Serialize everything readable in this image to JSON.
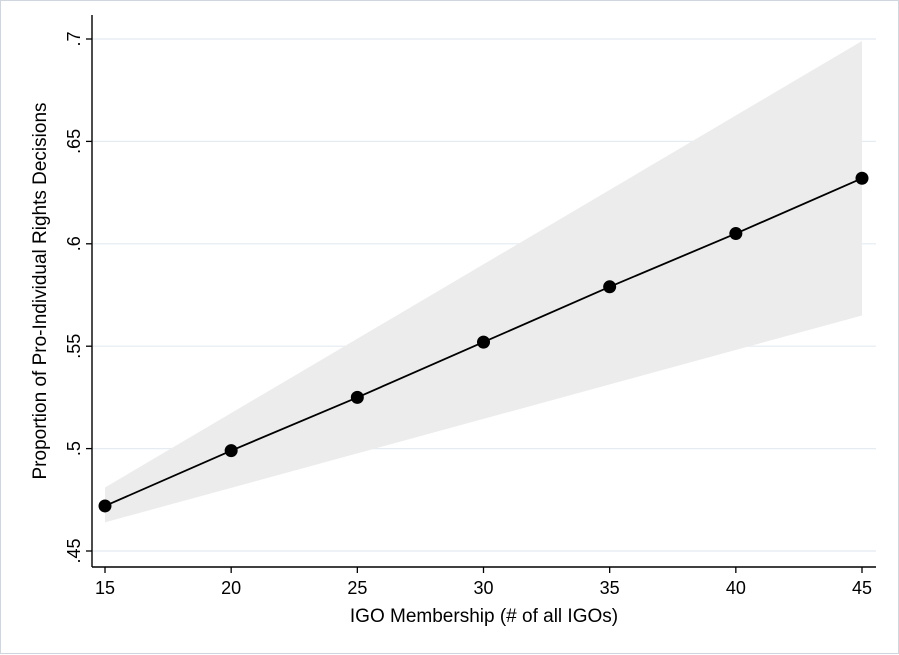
{
  "chart_data": {
    "type": "line",
    "title": "",
    "xlabel": "IGO Membership (# of all IGOs)",
    "ylabel": "Proportion of Pro-Individual Rights Decisions",
    "xlim": [
      15,
      45
    ],
    "ylim": [
      0.45,
      0.7
    ],
    "x_ticks": [
      15,
      20,
      25,
      30,
      35,
      40,
      45
    ],
    "x_tick_labels": [
      "15",
      "20",
      "25",
      "30",
      "35",
      "40",
      "45"
    ],
    "y_ticks": [
      0.45,
      0.5,
      0.55,
      0.6,
      0.65,
      0.7
    ],
    "y_tick_labels": [
      ".45",
      ".5",
      ".55",
      ".6",
      ".65",
      ".7"
    ],
    "grid": true,
    "series": [
      {
        "x": [
          15,
          20,
          25,
          30,
          35,
          40,
          45
        ],
        "y": [
          0.472,
          0.499,
          0.525,
          0.552,
          0.579,
          0.605,
          0.632
        ],
        "markers": true,
        "color": "#000000"
      }
    ],
    "confidence_band": {
      "x": [
        15,
        45
      ],
      "lower": [
        0.464,
        0.565
      ],
      "upper": [
        0.481,
        0.699
      ],
      "color": "#ececec"
    },
    "colors": {
      "background": "#ffffff",
      "grid": "#e4ebf1",
      "band": "#ececec",
      "line": "#000000"
    }
  }
}
